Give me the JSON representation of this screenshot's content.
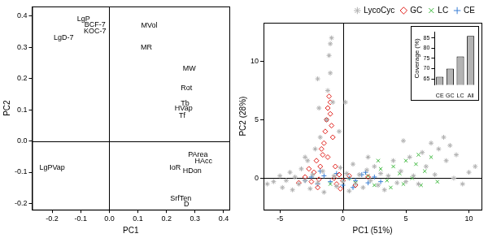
{
  "chart_data": [
    {
      "type": "scatter",
      "x_label": "PC1",
      "y_label": "PC2",
      "xlim": [
        -0.27,
        0.42
      ],
      "ylim": [
        -0.22,
        0.43
      ],
      "xticks": [
        -0.2,
        -0.1,
        {
          "value": 0,
          "label": "0.0"
        },
        0.1,
        0.2,
        0.3,
        0.4
      ],
      "yticks": [
        -0.2,
        -0.1,
        {
          "value": 0,
          "label": "0.0"
        },
        0.1,
        0.2,
        0.3,
        0.4
      ],
      "grid": false,
      "marker": "text",
      "ref_lines": {
        "x": [
          0
        ],
        "y": [
          0
        ]
      },
      "points": [
        {
          "label": "LgP",
          "x": -0.09,
          "y": 0.39
        },
        {
          "label": "BCF-7",
          "x": -0.05,
          "y": 0.372
        },
        {
          "label": "KOC-7",
          "x": -0.05,
          "y": 0.352
        },
        {
          "label": "LgD-7",
          "x": -0.16,
          "y": 0.33
        },
        {
          "label": "MVol",
          "x": 0.14,
          "y": 0.37
        },
        {
          "label": "MR",
          "x": 0.13,
          "y": 0.3
        },
        {
          "label": "MW",
          "x": 0.28,
          "y": 0.23
        },
        {
          "label": "Rot",
          "x": 0.27,
          "y": 0.17
        },
        {
          "label": "Tb",
          "x": 0.265,
          "y": 0.12
        },
        {
          "label": "HVap",
          "x": 0.26,
          "y": 0.105
        },
        {
          "label": "Tf",
          "x": 0.255,
          "y": 0.08
        },
        {
          "label": "PArea",
          "x": 0.31,
          "y": -0.045
        },
        {
          "label": "HAcc",
          "x": 0.33,
          "y": -0.065
        },
        {
          "label": "IoR",
          "x": 0.23,
          "y": -0.085
        },
        {
          "label": "HDon",
          "x": 0.29,
          "y": -0.097
        },
        {
          "label": "LgPVap",
          "x": -0.2,
          "y": -0.085
        },
        {
          "label": "SrfTen",
          "x": 0.25,
          "y": -0.185
        },
        {
          "label": "D",
          "x": 0.27,
          "y": -0.202
        }
      ]
    },
    {
      "type": "scatter",
      "x_label": "PC1 (51%)",
      "y_label": "PC2 (28%)",
      "xlim": [
        -6.3,
        11
      ],
      "ylim": [
        -2.7,
        13.3
      ],
      "xticks": [
        -5,
        0,
        5,
        10
      ],
      "yticks": [
        0,
        5,
        10
      ],
      "grid": false,
      "legend": "top",
      "ref_lines": {
        "x": [
          0
        ],
        "y": [
          0
        ]
      },
      "series": [
        {
          "name": "LycoCyc",
          "color": "#b0b0b0",
          "marker": "asterisk",
          "points": [
            [
              -5.5,
              -0.3
            ],
            [
              -5.0,
              0.2
            ],
            [
              -4.8,
              -0.8
            ],
            [
              -4.5,
              -0.2
            ],
            [
              -4.2,
              0.5
            ],
            [
              -4.0,
              -1.0
            ],
            [
              -3.8,
              0.1
            ],
            [
              -3.5,
              -0.5
            ],
            [
              -3.3,
              0.8
            ],
            [
              -3.0,
              -0.2
            ],
            [
              -2.8,
              1.5
            ],
            [
              -2.6,
              -0.9
            ],
            [
              -2.4,
              0.3
            ],
            [
              -2.2,
              2.5
            ],
            [
              -2.0,
              -0.4
            ],
            [
              -1.8,
              3.5
            ],
            [
              -1.6,
              0.6
            ],
            [
              -1.5,
              -1.2
            ],
            [
              -1.3,
              5.0
            ],
            [
              -1.2,
              7.5
            ],
            [
              -1.1,
              10.5
            ],
            [
              -1.0,
              11.5
            ],
            [
              -0.9,
              12.0
            ],
            [
              -1.0,
              9.0
            ],
            [
              -0.8,
              6.5
            ],
            [
              -0.7,
              0.2
            ],
            [
              -0.5,
              -0.7
            ],
            [
              -0.3,
              4.0
            ],
            [
              -0.2,
              0.9
            ],
            [
              0.0,
              -0.3
            ],
            [
              0.3,
              0.4
            ],
            [
              0.5,
              -1.1
            ],
            [
              0.8,
              1.2
            ],
            [
              1.0,
              -0.5
            ],
            [
              1.3,
              0.3
            ],
            [
              1.6,
              -0.8
            ],
            [
              1.9,
              0.7
            ],
            [
              2.2,
              -0.2
            ],
            [
              2.5,
              1.0
            ],
            [
              2.8,
              -0.6
            ],
            [
              3.0,
              0.4
            ],
            [
              3.3,
              -1.0
            ],
            [
              3.6,
              0.2
            ],
            [
              4.0,
              1.5
            ],
            [
              4.3,
              -0.4
            ],
            [
              4.6,
              0.6
            ],
            [
              5.0,
              -0.3
            ],
            [
              5.3,
              1.8
            ],
            [
              5.6,
              0.2
            ],
            [
              6.0,
              -0.5
            ],
            [
              6.3,
              2.2
            ],
            [
              6.6,
              1.0
            ],
            [
              7.0,
              3.0
            ],
            [
              7.3,
              0.3
            ],
            [
              7.6,
              2.5
            ],
            [
              8.0,
              3.5
            ],
            [
              8.2,
              1.5
            ],
            [
              8.5,
              2.8
            ],
            [
              8.8,
              0.0
            ],
            [
              9.0,
              2.0
            ],
            [
              9.5,
              -0.5
            ],
            [
              10.0,
              0.5
            ],
            [
              10.5,
              1.0
            ],
            [
              -2.0,
              8.5
            ],
            [
              -1.9,
              6.0
            ],
            [
              0.2,
              6.5
            ],
            [
              -6.0,
              -0.5
            ],
            [
              4.8,
              3.2
            ],
            [
              -3.0,
              1.8
            ],
            [
              2.0,
              1.8
            ]
          ]
        },
        {
          "name": "GC",
          "color": "#e0201b",
          "marker": "diamond",
          "points": [
            [
              -2.5,
              -0.3
            ],
            [
              -2.3,
              0.5
            ],
            [
              -2.0,
              -0.8
            ],
            [
              -1.8,
              1.0
            ],
            [
              -1.6,
              2.0
            ],
            [
              -1.5,
              3.0
            ],
            [
              -1.4,
              4.0
            ],
            [
              -1.3,
              5.0
            ],
            [
              -1.2,
              6.0
            ],
            [
              -1.1,
              7.0
            ],
            [
              -1.0,
              6.5
            ],
            [
              -1.0,
              5.5
            ],
            [
              -0.9,
              4.5
            ],
            [
              -0.8,
              3.5
            ],
            [
              -1.7,
              2.5
            ],
            [
              -2.1,
              1.5
            ],
            [
              -0.6,
              1.0
            ],
            [
              -0.5,
              -0.5
            ],
            [
              -0.3,
              0.3
            ],
            [
              0.0,
              -0.2
            ],
            [
              0.5,
              0.2
            ],
            [
              1.0,
              -0.6
            ],
            [
              -3.0,
              0.1
            ],
            [
              -3.5,
              -0.4
            ],
            [
              -1.9,
              -0.1
            ],
            [
              -0.7,
              0.0
            ],
            [
              2.0,
              0.1
            ],
            [
              -2.7,
              0.8
            ],
            [
              -1.2,
              1.8
            ],
            [
              -0.2,
              -0.9
            ]
          ]
        },
        {
          "name": "LC",
          "color": "#3cb83c",
          "marker": "x",
          "points": [
            [
              1.0,
              -0.4
            ],
            [
              2.0,
              0.2
            ],
            [
              2.5,
              -0.6
            ],
            [
              3.0,
              0.8
            ],
            [
              3.5,
              -0.2
            ],
            [
              4.0,
              1.0
            ],
            [
              4.5,
              0.4
            ],
            [
              5.0,
              1.5
            ],
            [
              5.5,
              0.0
            ],
            [
              5.8,
              1.2
            ],
            [
              6.0,
              2.0
            ],
            [
              6.5,
              0.6
            ],
            [
              7.0,
              1.8
            ],
            [
              7.5,
              -0.3
            ],
            [
              3.8,
              -0.8
            ],
            [
              4.8,
              -0.5
            ],
            [
              -1.0,
              -0.5
            ],
            [
              0.5,
              0.0
            ],
            [
              2.8,
              1.5
            ],
            [
              6.2,
              -0.6
            ]
          ]
        },
        {
          "name": "CE",
          "color": "#3a7fd5",
          "marker": "plus",
          "points": [
            [
              -3.0,
              -0.2
            ],
            [
              -2.5,
              0.1
            ],
            [
              -2.0,
              -0.5
            ],
            [
              -1.5,
              0.2
            ],
            [
              -1.0,
              -0.3
            ],
            [
              -0.5,
              0.4
            ],
            [
              0.0,
              -0.6
            ],
            [
              0.5,
              0.0
            ],
            [
              1.0,
              -0.2
            ],
            [
              1.5,
              0.3
            ],
            [
              2.0,
              -0.4
            ],
            [
              2.5,
              0.1
            ],
            [
              3.0,
              -0.3
            ],
            [
              -1.8,
              0.6
            ],
            [
              0.8,
              -0.8
            ],
            [
              1.8,
              0.5
            ]
          ]
        }
      ]
    },
    {
      "type": "bar",
      "y_label": "Coverage (%)",
      "categories": [
        "CE",
        "GC",
        "LC",
        "All"
      ],
      "values": [
        66,
        70,
        76,
        86
      ],
      "color": "#b3b3b3",
      "ylim": [
        62,
        88
      ],
      "yticks": [
        65,
        70,
        75,
        80,
        85
      ],
      "grid": false
    }
  ]
}
